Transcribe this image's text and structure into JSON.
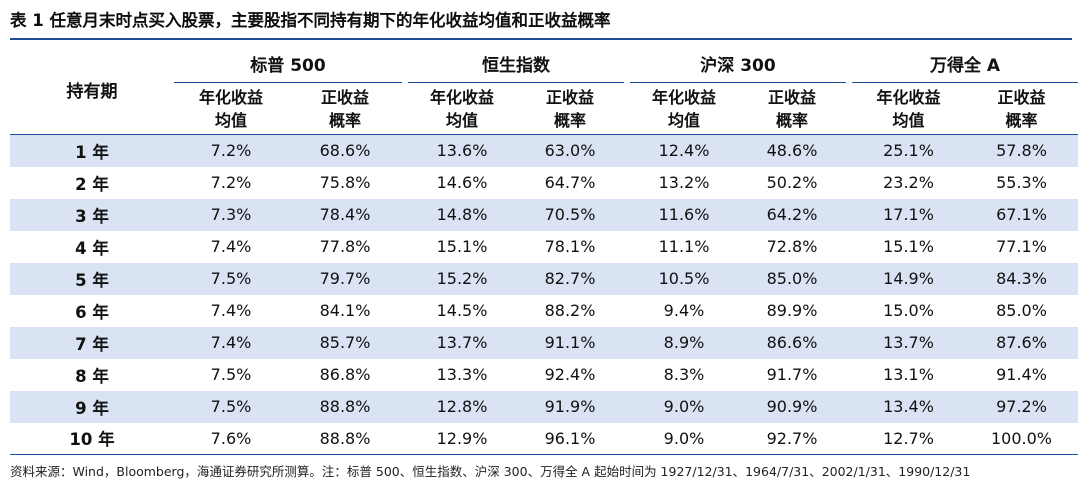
{
  "title": "表 1 任意月末时点买入股票，主要股指不同持有期下的年化收益均值和正收益概率",
  "header": {
    "period_label": "持有期",
    "groups": [
      "标普 500",
      "恒生指数",
      "沪深 300",
      "万得全 A"
    ],
    "sub_mean": [
      "年化收益",
      "均值"
    ],
    "sub_prob": [
      "正收益",
      "概率"
    ]
  },
  "rows": [
    {
      "period": "1 年",
      "values": [
        "7.2%",
        "68.6%",
        "13.6%",
        "63.0%",
        "12.4%",
        "48.6%",
        "25.1%",
        "57.8%"
      ]
    },
    {
      "period": "2 年",
      "values": [
        "7.2%",
        "75.8%",
        "14.6%",
        "64.7%",
        "13.2%",
        "50.2%",
        "23.2%",
        "55.3%"
      ]
    },
    {
      "period": "3 年",
      "values": [
        "7.3%",
        "78.4%",
        "14.8%",
        "70.5%",
        "11.6%",
        "64.2%",
        "17.1%",
        "67.1%"
      ]
    },
    {
      "period": "4 年",
      "values": [
        "7.4%",
        "77.8%",
        "15.1%",
        "78.1%",
        "11.1%",
        "72.8%",
        "15.1%",
        "77.1%"
      ]
    },
    {
      "period": "5 年",
      "values": [
        "7.5%",
        "79.7%",
        "15.2%",
        "82.7%",
        "10.5%",
        "85.0%",
        "14.9%",
        "84.3%"
      ]
    },
    {
      "period": "6 年",
      "values": [
        "7.4%",
        "84.1%",
        "14.5%",
        "88.2%",
        "9.4%",
        "89.9%",
        "15.0%",
        "85.0%"
      ]
    },
    {
      "period": "7 年",
      "values": [
        "7.4%",
        "85.7%",
        "13.7%",
        "91.1%",
        "8.9%",
        "86.6%",
        "13.7%",
        "87.6%"
      ]
    },
    {
      "period": "8 年",
      "values": [
        "7.5%",
        "86.8%",
        "13.3%",
        "92.4%",
        "8.3%",
        "91.7%",
        "13.1%",
        "91.4%"
      ]
    },
    {
      "period": "9 年",
      "values": [
        "7.5%",
        "88.8%",
        "12.8%",
        "91.9%",
        "9.0%",
        "90.9%",
        "13.4%",
        "97.2%"
      ]
    },
    {
      "period": "10 年",
      "values": [
        "7.6%",
        "88.8%",
        "12.9%",
        "96.1%",
        "9.0%",
        "92.7%",
        "12.7%",
        "100.0%"
      ]
    }
  ],
  "source": "资料来源：Wind，Bloomberg，海通证券研究所测算。注：标普 500、恒生指数、沪深 300、万得全 A 起始时间为 1927/12/31、1964/7/31、2002/1/31、1990/12/31",
  "colors": {
    "band": "#dae3f3",
    "rule": "#1f4e99"
  }
}
